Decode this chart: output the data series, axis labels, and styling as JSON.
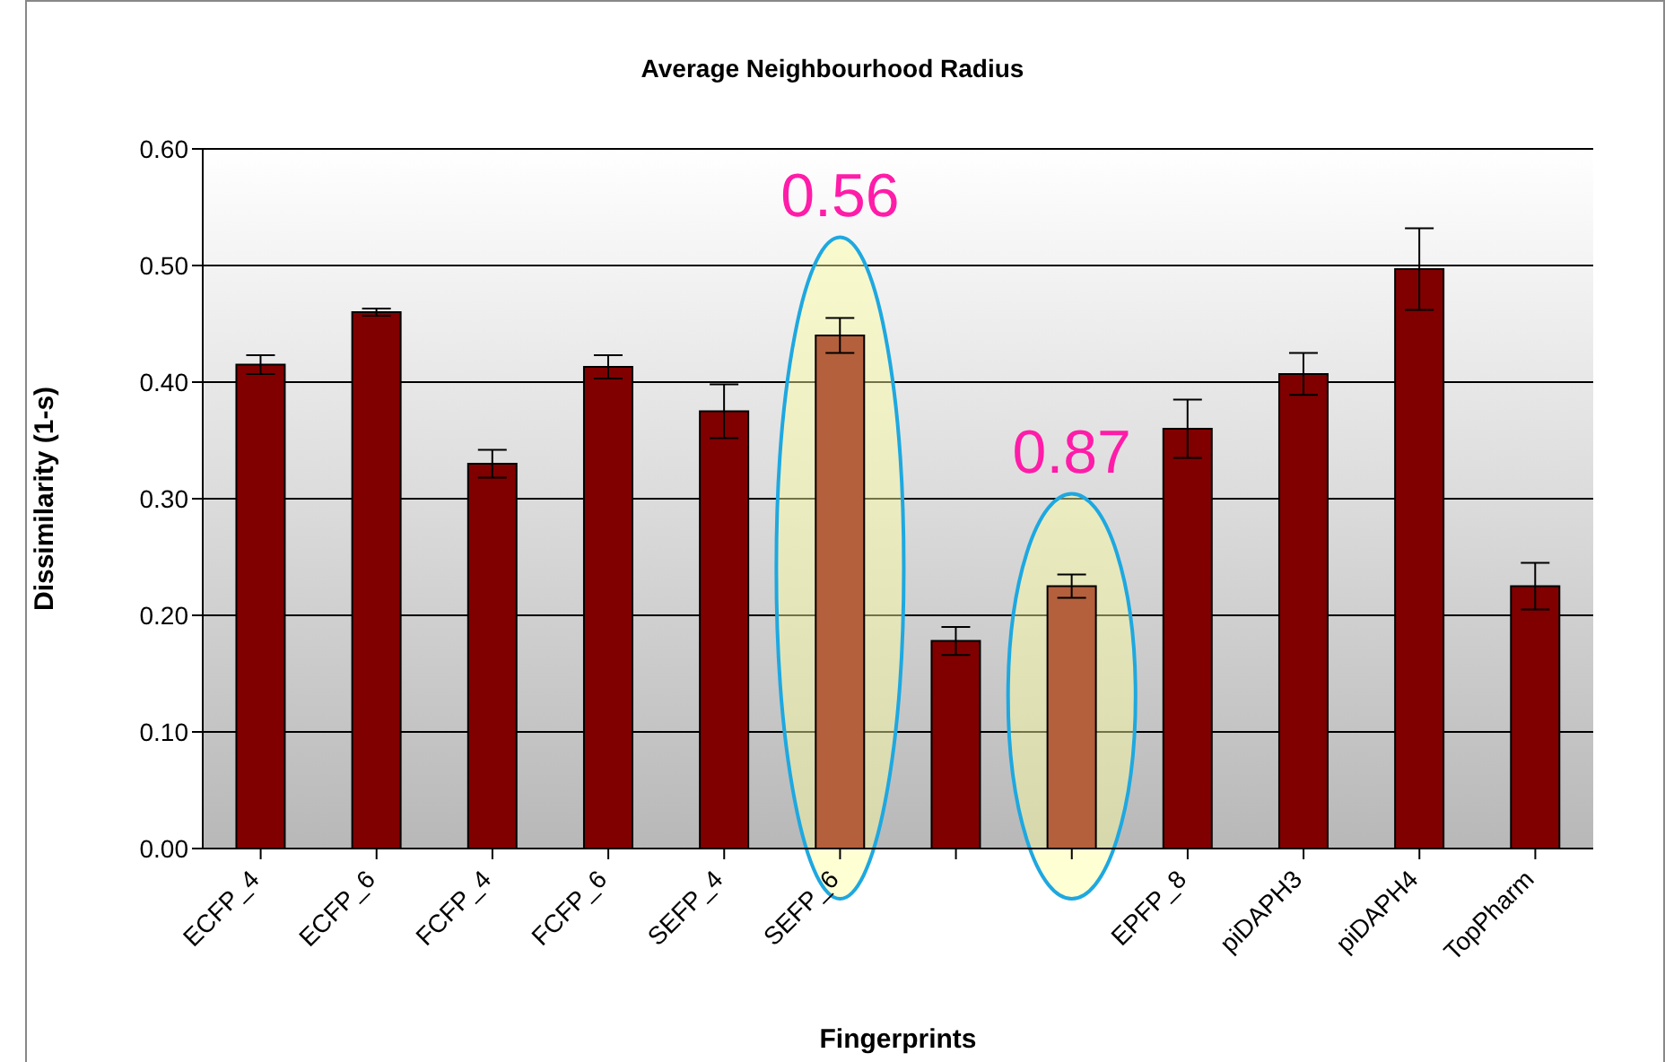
{
  "chart_data": {
    "type": "bar",
    "title": "Average Neighbourhood Radius",
    "xlabel": "Fingerprints",
    "ylabel": "Dissimilarity (1-s)",
    "categories": [
      "ECFP_4",
      "ECFP_6",
      "FCFP_4",
      "FCFP_6",
      "SEFP_4",
      "SEFP_6",
      null,
      null,
      "EPFP_8",
      "piDAPH3",
      "piDAPH4",
      "TopPharm"
    ],
    "values": [
      0.415,
      0.46,
      0.33,
      0.413,
      0.375,
      0.44,
      0.178,
      0.225,
      0.36,
      0.407,
      0.497,
      0.225
    ],
    "errors": [
      0.008,
      0.003,
      0.012,
      0.01,
      0.023,
      0.015,
      0.012,
      0.01,
      0.025,
      0.018,
      0.035,
      0.02
    ],
    "colors": [
      "#800000",
      "#800000",
      "#800000",
      "#800000",
      "#800000",
      "#b4603c",
      "#800000",
      "#b4603c",
      "#800000",
      "#800000",
      "#800000",
      "#800000"
    ],
    "ylim": [
      0,
      0.6
    ],
    "yticks": [
      {
        "value": 0,
        "label": "0.00"
      },
      {
        "value": 0.1,
        "label": "0.10"
      },
      {
        "value": 0.2,
        "label": "0.20"
      },
      {
        "value": 0.3,
        "label": "0.30"
      },
      {
        "value": 0.4,
        "label": "0.40"
      },
      {
        "value": 0.5,
        "label": "0.50"
      },
      {
        "value": 0.6,
        "label": "0.60"
      }
    ],
    "grid": "y",
    "annotations": [
      "0.56",
      "0.87"
    ]
  }
}
